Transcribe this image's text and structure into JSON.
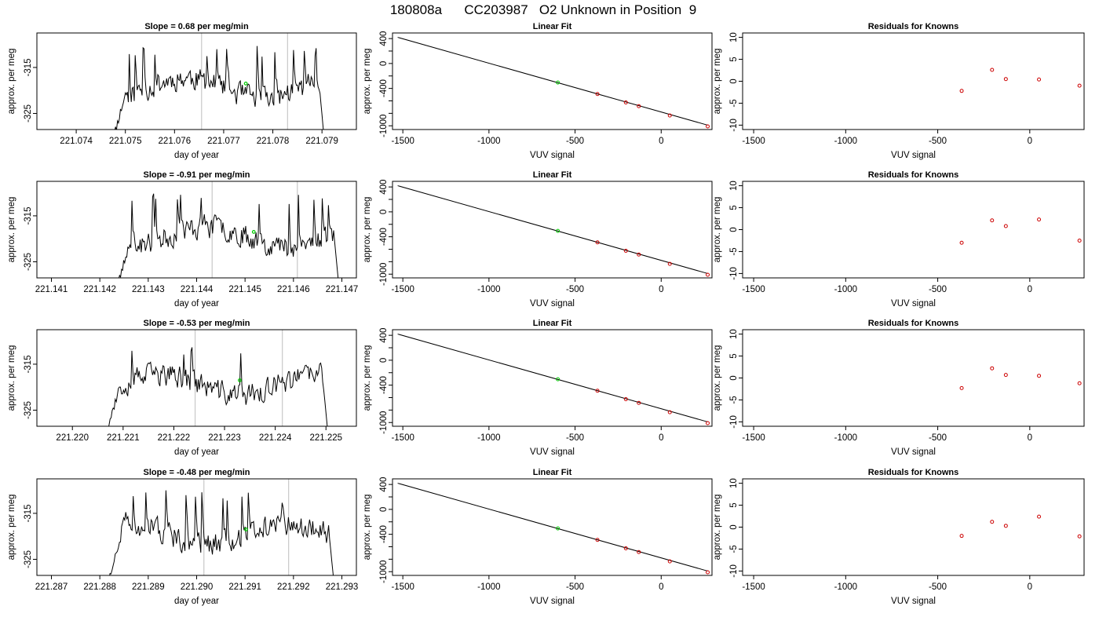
{
  "page_title": "180808a      CC203987   O2 Unknown in Position  9",
  "colors": {
    "trace": "#000000",
    "vline": "#c8c8c8",
    "unknown": "#00cc00",
    "known": "#cc0000",
    "frame": "#000000"
  },
  "chart_data": [
    {
      "type": "line",
      "title": "Slope =  0.68  per meg/min",
      "xlabel": "day of year",
      "ylabel": "approx. per meg",
      "xlim": [
        221.0732,
        221.0797
      ],
      "ylim": [
        -328.5,
        -307.5
      ],
      "x_ticks": [
        "221.074",
        "221.075",
        "221.076",
        "221.077",
        "221.078",
        "221.079"
      ],
      "y_ticks": [
        "-315",
        "-325"
      ],
      "data_start": 221.0747,
      "data_end": 221.0791,
      "vlines": [
        221.07655,
        221.0783
      ],
      "unknown_point": [
        221.07745,
        -318.5
      ],
      "seed": 11
    },
    {
      "type": "scatter",
      "title": "Linear Fit",
      "xlabel": "VUV signal",
      "ylabel": "approx. per meg",
      "xlim": [
        -1560,
        295
      ],
      "ylim": [
        -1060,
        490
      ],
      "x_ticks": [
        "-1500",
        "-1000",
        "-500",
        "0"
      ],
      "y_ticks": [
        "400",
        "0",
        "-400",
        "-1000"
      ],
      "fit_line": [
        [
          -1530,
          420
        ],
        [
          270,
          -990
        ]
      ],
      "unknown_points": [
        [
          -600,
          -305
        ]
      ],
      "known_points": [
        [
          -370,
          -490
        ],
        [
          -205,
          -625
        ],
        [
          -130,
          -685
        ],
        [
          50,
          -835
        ],
        [
          270,
          -1010
        ]
      ]
    },
    {
      "type": "scatter",
      "title": "Residuals for Knowns",
      "xlabel": "VUV signal",
      "ylabel": "approx. per meg",
      "xlim": [
        -1560,
        295
      ],
      "ylim": [
        -11,
        11
      ],
      "x_ticks": [
        "-1500",
        "-1000",
        "-500",
        "0"
      ],
      "y_ticks": [
        "10",
        "5",
        "0",
        "-5",
        "-10"
      ],
      "known_points": [
        [
          -370,
          -2.2
        ],
        [
          -205,
          2.6
        ],
        [
          -130,
          0.5
        ],
        [
          50,
          0.4
        ],
        [
          270,
          -1.0
        ]
      ]
    },
    {
      "type": "line",
      "title": "Slope =  -0.91  per meg/min",
      "xlabel": "day of year",
      "ylabel": "approx. per meg",
      "xlim": [
        221.1407,
        221.1473
      ],
      "ylim": [
        -328.5,
        -307.5
      ],
      "x_ticks": [
        "221.141",
        "221.142",
        "221.143",
        "221.144",
        "221.145",
        "221.146",
        "221.147"
      ],
      "y_ticks": [
        "-315",
        "-325"
      ],
      "data_start": 221.1423,
      "data_end": 221.147,
      "vlines": [
        221.14432,
        221.14608
      ],
      "unknown_point": [
        221.14518,
        -318.5
      ],
      "seed": 23
    },
    {
      "type": "scatter",
      "title": "Linear Fit",
      "xlabel": "VUV signal",
      "ylabel": "approx. per meg",
      "xlim": [
        -1560,
        295
      ],
      "ylim": [
        -1060,
        490
      ],
      "x_ticks": [
        "-1500",
        "-1000",
        "-500",
        "0"
      ],
      "y_ticks": [
        "400",
        "0",
        "-400",
        "-1000"
      ],
      "fit_line": [
        [
          -1530,
          420
        ],
        [
          270,
          -990
        ]
      ],
      "unknown_points": [
        [
          -600,
          -305
        ]
      ],
      "known_points": [
        [
          -370,
          -490
        ],
        [
          -205,
          -625
        ],
        [
          -130,
          -685
        ],
        [
          50,
          -835
        ],
        [
          270,
          -1010
        ]
      ]
    },
    {
      "type": "scatter",
      "title": "Residuals for Knowns",
      "xlabel": "VUV signal",
      "ylabel": "approx. per meg",
      "xlim": [
        -1560,
        295
      ],
      "ylim": [
        -11,
        11
      ],
      "x_ticks": [
        "-1500",
        "-1000",
        "-500",
        "0"
      ],
      "y_ticks": [
        "10",
        "5",
        "0",
        "-5",
        "-10"
      ],
      "known_points": [
        [
          -370,
          -3.0
        ],
        [
          -205,
          2.1
        ],
        [
          -130,
          0.8
        ],
        [
          50,
          2.3
        ],
        [
          270,
          -2.5
        ]
      ]
    },
    {
      "type": "line",
      "title": "Slope =  -0.53  per meg/min",
      "xlabel": "day of year",
      "ylabel": "approx. per meg",
      "xlim": [
        221.2193,
        221.2256
      ],
      "ylim": [
        -328.5,
        -307.5
      ],
      "x_ticks": [
        "221.220",
        "221.221",
        "221.222",
        "221.223",
        "221.224",
        "221.225"
      ],
      "y_ticks": [
        "-315",
        "-325"
      ],
      "data_start": 221.2206,
      "data_end": 221.2251,
      "vlines": [
        221.22242,
        221.22414
      ],
      "unknown_point": [
        221.2233,
        -318.5
      ],
      "seed": 37
    },
    {
      "type": "scatter",
      "title": "Linear Fit",
      "xlabel": "VUV signal",
      "ylabel": "approx. per meg",
      "xlim": [
        -1560,
        295
      ],
      "ylim": [
        -1060,
        490
      ],
      "x_ticks": [
        "-1500",
        "-1000",
        "-500",
        "0"
      ],
      "y_ticks": [
        "400",
        "0",
        "-400",
        "-1000"
      ],
      "fit_line": [
        [
          -1530,
          420
        ],
        [
          270,
          -990
        ]
      ],
      "unknown_points": [
        [
          -600,
          -305
        ]
      ],
      "known_points": [
        [
          -370,
          -490
        ],
        [
          -205,
          -625
        ],
        [
          -130,
          -685
        ],
        [
          50,
          -835
        ],
        [
          270,
          -1010
        ]
      ]
    },
    {
      "type": "scatter",
      "title": "Residuals for Knowns",
      "xlabel": "VUV signal",
      "ylabel": "approx. per meg",
      "xlim": [
        -1560,
        295
      ],
      "ylim": [
        -11,
        11
      ],
      "x_ticks": [
        "-1500",
        "-1000",
        "-500",
        "0"
      ],
      "y_ticks": [
        "10",
        "5",
        "0",
        "-5",
        "-10"
      ],
      "known_points": [
        [
          -370,
          -2.3
        ],
        [
          -205,
          2.2
        ],
        [
          -130,
          0.7
        ],
        [
          50,
          0.5
        ],
        [
          270,
          -1.2
        ]
      ]
    },
    {
      "type": "line",
      "title": "Slope =  -0.48  per meg/min",
      "xlabel": "day of year",
      "ylabel": "approx. per meg",
      "xlim": [
        221.2867,
        221.2933
      ],
      "ylim": [
        -328.5,
        -307.5
      ],
      "x_ticks": [
        "221.287",
        "221.288",
        "221.289",
        "221.290",
        "221.291",
        "221.292",
        "221.293"
      ],
      "y_ticks": [
        "-315",
        "-325"
      ],
      "data_start": 221.2881,
      "data_end": 221.2929,
      "vlines": [
        221.29015,
        221.2919
      ],
      "unknown_point": [
        221.29102,
        -318.5
      ],
      "seed": 51
    },
    {
      "type": "scatter",
      "title": "Linear Fit",
      "xlabel": "VUV signal",
      "ylabel": "approx. per meg",
      "xlim": [
        -1560,
        295
      ],
      "ylim": [
        -1060,
        490
      ],
      "x_ticks": [
        "-1500",
        "-1000",
        "-500",
        "0"
      ],
      "y_ticks": [
        "400",
        "0",
        "-400",
        "-1000"
      ],
      "fit_line": [
        [
          -1530,
          420
        ],
        [
          270,
          -990
        ]
      ],
      "unknown_points": [
        [
          -600,
          -305
        ]
      ],
      "known_points": [
        [
          -370,
          -490
        ],
        [
          -205,
          -625
        ],
        [
          -130,
          -685
        ],
        [
          50,
          -835
        ],
        [
          270,
          -1010
        ]
      ]
    },
    {
      "type": "scatter",
      "title": "Residuals for Knowns",
      "xlabel": "VUV signal",
      "ylabel": "approx. per meg",
      "xlim": [
        -1560,
        295
      ],
      "ylim": [
        -11,
        11
      ],
      "x_ticks": [
        "-1500",
        "-1000",
        "-500",
        "0"
      ],
      "y_ticks": [
        "10",
        "5",
        "0",
        "-5",
        "-10"
      ],
      "known_points": [
        [
          -370,
          -2.0
        ],
        [
          -205,
          1.2
        ],
        [
          -130,
          0.3
        ],
        [
          50,
          2.4
        ],
        [
          270,
          -2.1
        ]
      ]
    }
  ]
}
